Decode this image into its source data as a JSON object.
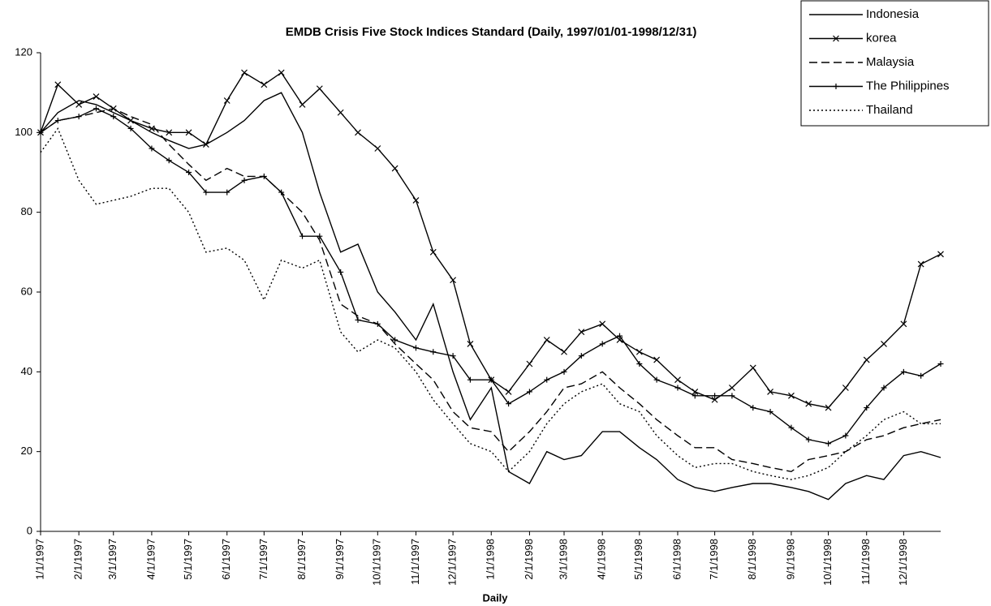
{
  "chart_data": {
    "type": "line",
    "title": "EMDB Crisis Five Stock Indices Standard (Daily, 1997/01/01-1998/12/31)",
    "x_label": "Daily",
    "x": [
      "1/1/1997",
      "1/15/1997",
      "2/1/1997",
      "2/15/1997",
      "3/1/1997",
      "3/15/1997",
      "4/1/1997",
      "4/15/1997",
      "5/1/1997",
      "5/15/1997",
      "6/1/1997",
      "6/15/1997",
      "7/1/1997",
      "7/15/1997",
      "8/1/1997",
      "8/15/1997",
      "9/1/1997",
      "9/15/1997",
      "10/1/1997",
      "10/15/1997",
      "11/1/1997",
      "11/15/1997",
      "12/1/1997",
      "12/15/1997",
      "1/1/1998",
      "1/15/1998",
      "2/1/1998",
      "2/15/1998",
      "3/1/1998",
      "3/15/1998",
      "4/1/1998",
      "4/15/1998",
      "5/1/1998",
      "5/15/1998",
      "6/1/1998",
      "6/15/1998",
      "7/1/1998",
      "7/15/1998",
      "8/1/1998",
      "8/15/1998",
      "9/1/1998",
      "9/15/1998",
      "10/1/1998",
      "10/15/1998",
      "11/1/1998",
      "11/15/1998",
      "12/1/1998",
      "12/15/1998",
      "12/31/1998"
    ],
    "xlim": [
      "1/1/1997",
      "12/31/1998"
    ],
    "xticks": [
      "1/1/1997",
      "2/1/1997",
      "3/1/1997",
      "4/1/1997",
      "5/1/1997",
      "6/1/1997",
      "7/1/1997",
      "8/1/1997",
      "9/1/1997",
      "10/1/1997",
      "11/1/1997",
      "12/1/1997",
      "1/1/1998",
      "2/1/1998",
      "3/1/1998",
      "4/1/1998",
      "5/1/1998",
      "6/1/1998",
      "7/1/1998",
      "8/1/1998",
      "9/1/1998",
      "10/1/1998",
      "11/1/1998",
      "12/1/1998"
    ],
    "ylim": [
      0,
      120
    ],
    "yticks": [
      0,
      20,
      40,
      60,
      80,
      100,
      120
    ],
    "grid": false,
    "legend": "top-right",
    "series": [
      {
        "name": "Indonesia",
        "color": "#000000",
        "line_style": "solid",
        "values": [
          100,
          105,
          108,
          107,
          105,
          103,
          100,
          98,
          96,
          97,
          100,
          103,
          108,
          110,
          100,
          85,
          70,
          72,
          60,
          55,
          48,
          57,
          40,
          28,
          36,
          15,
          12,
          20,
          18,
          19,
          25,
          25,
          21,
          18,
          13,
          11,
          10,
          11,
          12,
          12,
          11,
          10,
          8,
          12,
          14,
          13,
          19,
          20,
          18.5
        ]
      },
      {
        "name": "korea",
        "color": "#000000",
        "line_style": "solid",
        "marker": "x",
        "values": [
          100,
          112,
          107,
          109,
          106,
          103,
          101,
          100,
          100,
          97,
          108,
          115,
          112,
          115,
          107,
          111,
          105,
          100,
          96,
          91,
          83,
          70,
          63,
          47,
          38,
          35,
          42,
          48,
          45,
          50,
          52,
          48,
          45,
          43,
          38,
          35,
          33,
          36,
          41,
          35,
          34,
          32,
          31,
          36,
          43,
          47,
          52,
          67,
          69.5
        ]
      },
      {
        "name": "Malaysia",
        "color": "#000000",
        "line_style": "dashed",
        "values": [
          100,
          103,
          104,
          105,
          106,
          104,
          102,
          97,
          92,
          88,
          91,
          89,
          89,
          85,
          80,
          73,
          57,
          54,
          52,
          47,
          42,
          38,
          30,
          26,
          25,
          20,
          25,
          30,
          36,
          37,
          40,
          36,
          32,
          28,
          24,
          21,
          21,
          18,
          17,
          16,
          15,
          18,
          19,
          20,
          23,
          24,
          26,
          27,
          28
        ]
      },
      {
        "name": "The Philippines",
        "color": "#000000",
        "line_style": "solid",
        "marker": "+",
        "values": [
          100,
          103,
          104,
          106,
          104,
          101,
          96,
          93,
          90,
          85,
          85,
          88,
          89,
          85,
          74,
          74,
          65,
          53,
          52,
          48,
          46,
          45,
          44,
          38,
          38,
          32,
          35,
          38,
          40,
          44,
          47,
          49,
          42,
          38,
          36,
          34,
          34,
          34,
          31,
          30,
          26,
          23,
          22,
          24,
          31,
          36,
          40,
          39,
          42
        ]
      },
      {
        "name": "Thailand",
        "color": "#000000",
        "line_style": "dotted",
        "values": [
          95,
          101,
          88,
          82,
          83,
          84,
          86,
          86,
          80,
          70,
          71,
          68,
          58,
          68,
          66,
          68,
          50,
          45,
          48,
          46,
          40,
          33,
          27,
          22,
          20,
          15,
          20,
          27,
          32,
          35,
          37,
          32,
          30,
          24,
          19,
          16,
          17,
          17,
          15,
          14,
          13,
          14,
          16,
          20,
          24,
          28,
          30,
          27,
          27
        ]
      }
    ]
  }
}
